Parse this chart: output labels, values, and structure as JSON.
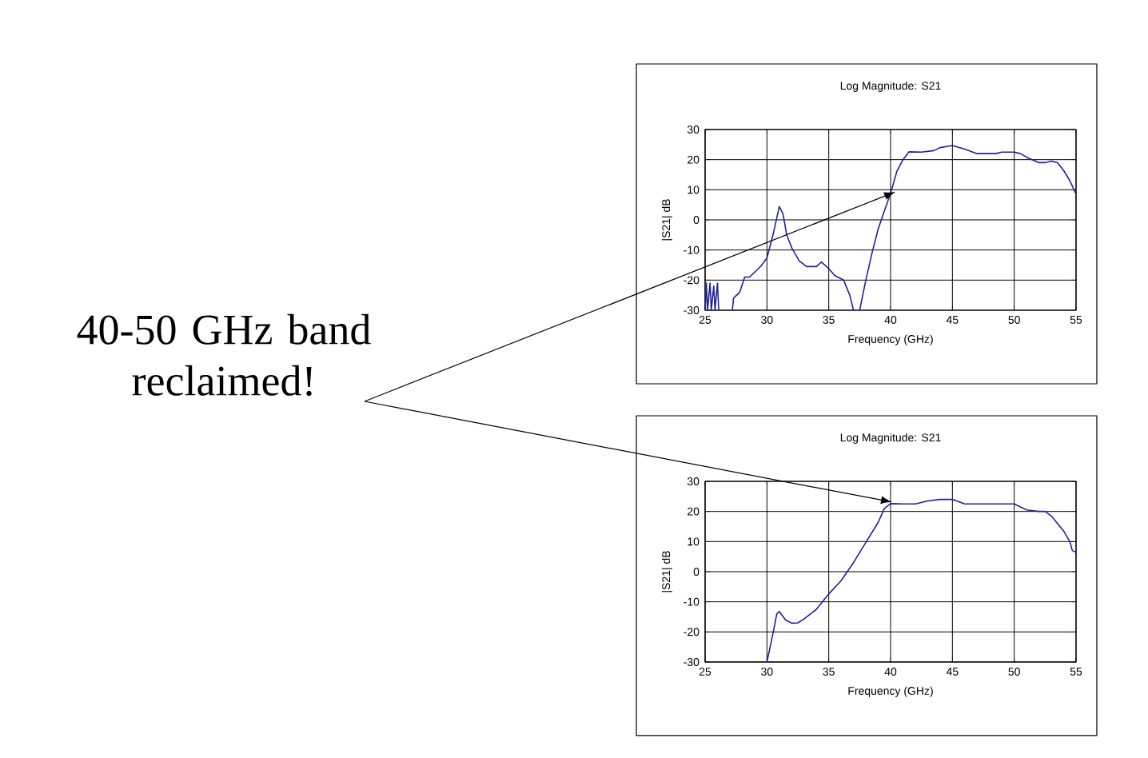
{
  "chart_data": [
    {
      "type": "other",
      "annotations": [
        "40-50 GHz band reclaimed!"
      ]
    },
    {
      "type": "line",
      "title": "Log Magnitude: S21",
      "xlabel": "Frequency (GHz)",
      "ylabel": "|S21| dB",
      "grid": true,
      "xlim": [
        25,
        55
      ],
      "ylim": [
        -30,
        30
      ],
      "xticks": [
        25,
        30,
        35,
        40,
        45,
        50,
        55
      ],
      "yticks": [
        -30,
        -20,
        -10,
        0,
        10,
        20,
        30
      ],
      "x": [
        25.0,
        25.1,
        25.2,
        25.4,
        25.5,
        25.7,
        25.8,
        26.0,
        26.1,
        26.6,
        27.2,
        27.3,
        27.8,
        28.2,
        28.6,
        29.5,
        30.0,
        30.5,
        31.0,
        31.3,
        31.6,
        32.0,
        32.6,
        33.2,
        34.0,
        34.4,
        35.0,
        35.5,
        36.2,
        36.7,
        37.0,
        37.2,
        37.5,
        38.0,
        38.5,
        39.0,
        39.5,
        40.0,
        40.5,
        41.0,
        41.5,
        42.5,
        43.5,
        44.0,
        45.0,
        46.0,
        47.0,
        48.0,
        48.5,
        49.0,
        50.0,
        50.5,
        51.0,
        52.0,
        52.5,
        53.0,
        53.5,
        54.0,
        54.5,
        55.0
      ],
      "series": [
        {
          "color": "#20209a",
          "values": [
            -30,
            -21,
            -30,
            -21,
            -30,
            -22,
            -30,
            -21,
            -30,
            null,
            -30,
            -26,
            -24,
            -19,
            -19,
            -15.4,
            -12.7,
            -4.8,
            4.4,
            2,
            -5,
            -9.2,
            -13.6,
            -15.5,
            -15.5,
            -14,
            -16.2,
            -18.5,
            -20,
            -25,
            -30,
            null,
            -30,
            -20,
            -11,
            -3,
            3,
            8.8,
            16,
            20,
            22.6,
            22.5,
            23,
            24,
            24.7,
            23.5,
            22,
            22,
            22,
            22.5,
            22.5,
            22,
            20.8,
            19,
            19,
            19.5,
            19,
            16.4,
            13,
            8.5
          ]
        }
      ]
    },
    {
      "type": "line",
      "title": "Log Magnitude: S21",
      "xlabel": "Frequency (GHz)",
      "ylabel": "|S21| dB",
      "grid": true,
      "xlim": [
        25,
        55
      ],
      "ylim": [
        -30,
        30
      ],
      "xticks": [
        25,
        30,
        35,
        40,
        45,
        50,
        55
      ],
      "yticks": [
        -30,
        -20,
        -10,
        0,
        10,
        20,
        30
      ],
      "x": [
        30.0,
        30.5,
        30.8,
        31.0,
        31.5,
        32.0,
        32.5,
        33.0,
        34.0,
        35.0,
        36.0,
        36.5,
        37.0,
        38.0,
        39.0,
        39.5,
        40.0,
        41.0,
        42.0,
        43.0,
        44.0,
        45.0,
        46.0,
        47.0,
        48.0,
        49.0,
        50.0,
        51.0,
        52.0,
        52.5,
        53.0,
        54.0,
        54.5,
        54.7,
        55.0
      ],
      "series": [
        {
          "color": "#20209a",
          "values": [
            -30,
            -20.3,
            -14,
            -13.2,
            -16,
            -17.1,
            -17,
            -15.7,
            -12.5,
            -7.4,
            -3,
            0,
            3,
            9.7,
            16.4,
            21,
            22.6,
            22.5,
            22.5,
            23.5,
            24,
            24,
            22.5,
            22.5,
            22.5,
            22.5,
            22.5,
            20.5,
            20,
            20,
            18.5,
            13.5,
            10,
            7,
            6.5
          ]
        }
      ]
    }
  ]
}
